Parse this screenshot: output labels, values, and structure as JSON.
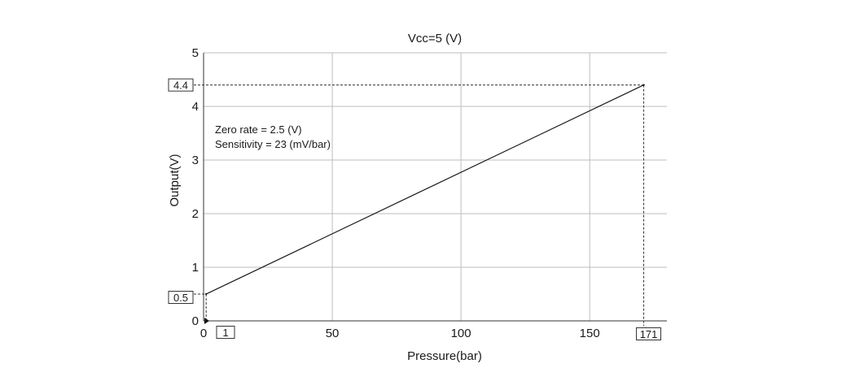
{
  "chart_data": {
    "type": "line",
    "title": "Vcc=5 (V)",
    "xlabel": "Pressure(bar)",
    "ylabel": "Output(V)",
    "xlim": [
      0,
      180
    ],
    "ylim": [
      0,
      5
    ],
    "x_ticks": [
      0,
      50,
      100,
      150
    ],
    "y_ticks": [
      0,
      1,
      2,
      3,
      4,
      5
    ],
    "grid": true,
    "series": [
      {
        "x": [
          1,
          171
        ],
        "y": [
          0.5,
          4.4
        ]
      }
    ],
    "callouts": {
      "x_start": "1",
      "x_end": "171",
      "y_start": "0.5",
      "y_end": "4.4"
    },
    "annotation": {
      "line1": "Zero  rate = 2.5 (V)",
      "line2": "Sensitivity = 23 (mV/bar)"
    },
    "colors": {
      "line": "#1a1a1a",
      "grid": "#bdbdbd",
      "axis": "#333333"
    }
  }
}
